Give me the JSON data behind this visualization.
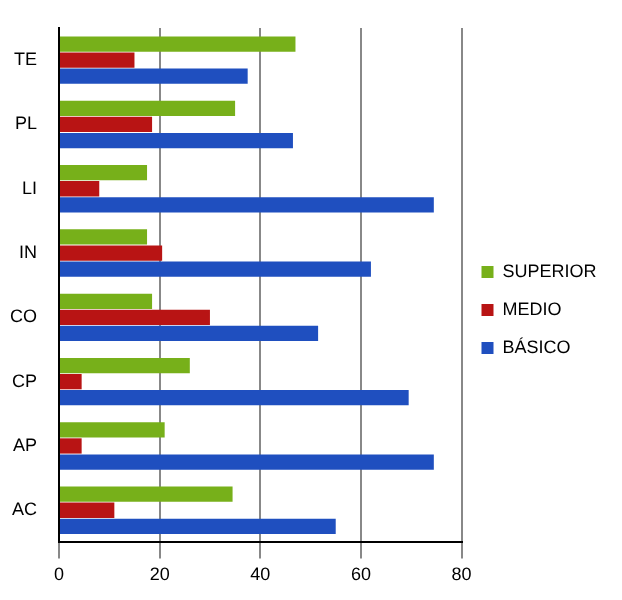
{
  "chart_data": {
    "type": "bar",
    "orientation": "horizontal",
    "categories": [
      "TE",
      "PL",
      "LI",
      "IN",
      "CO",
      "CP",
      "AP",
      "AC"
    ],
    "series": [
      {
        "name": "SUPERIOR",
        "color": "#77b01a",
        "values": [
          47,
          35,
          17.5,
          17.5,
          18.5,
          26,
          21,
          34.5
        ]
      },
      {
        "name": "MEDIO",
        "color": "#b81414",
        "values": [
          15,
          18.5,
          8,
          20.5,
          30,
          4.5,
          4.5,
          11
        ]
      },
      {
        "name": "BÁSICO",
        "color": "#1f4fbf",
        "values": [
          37.5,
          46.5,
          74.5,
          62,
          51.5,
          69.5,
          74.5,
          55
        ]
      }
    ],
    "xlim": [
      0,
      80
    ],
    "xticks": [
      0,
      20,
      40,
      60,
      80
    ],
    "grid": "x",
    "legend": "right"
  }
}
